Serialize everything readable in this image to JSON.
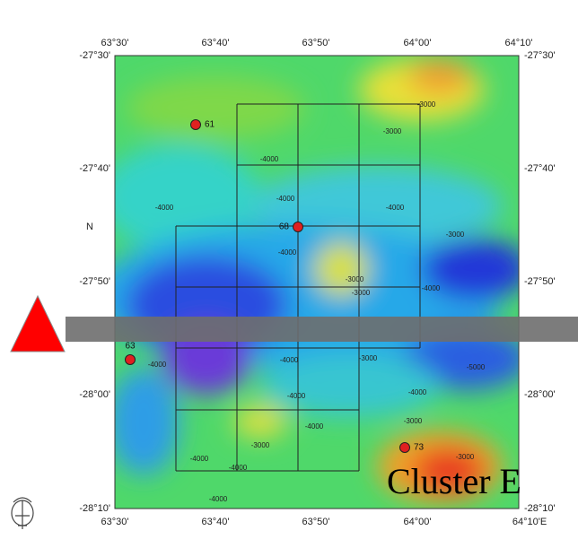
{
  "map": {
    "top_labels": [
      "63°30'",
      "63°40'",
      "63°50'",
      "64°00'",
      "64°10'"
    ],
    "bottom_labels": [
      "63°30'",
      "63°40'",
      "63°50'",
      "64°00'",
      "64°10'E"
    ],
    "left_labels": [
      "-27°30'",
      "-27°40'",
      "-27°50'",
      "-28°00'",
      "-28°10'"
    ],
    "right_labels": [
      "-27°30'",
      "-27°40'",
      "-27°50'",
      "-28°00'",
      "-28°10'"
    ],
    "north_label": "N",
    "stations": [
      "61",
      "68",
      "63",
      "73"
    ],
    "contour_labels": [
      "-3000",
      "-3000",
      "-4000",
      "-4000",
      "-4000",
      "-4000",
      "-4000",
      "-3000",
      "-3000",
      "-3000",
      "-4000",
      "-4000",
      "-4000",
      "-3000",
      "-5000",
      "-4000",
      "-4000",
      "-4000",
      "-3000",
      "-3000",
      "-4000",
      "-4000",
      "-4000",
      "-3000"
    ],
    "cluster_label": "Cluster E"
  }
}
